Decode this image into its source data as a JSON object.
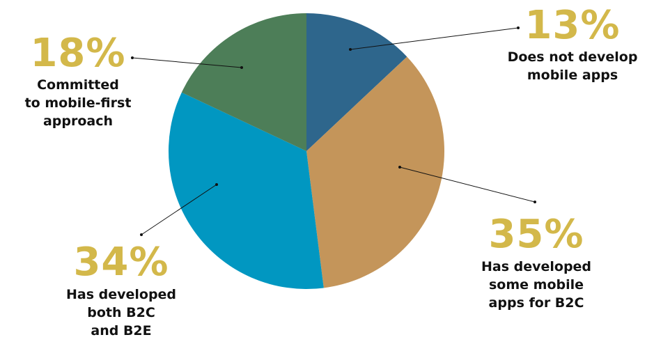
{
  "chart_data": {
    "type": "pie",
    "start_angle_deg": 0,
    "direction": "clockwise",
    "slices": [
      {
        "value": 13,
        "percent_label": "13%",
        "label_lines": [
          "Does not develop",
          "mobile apps"
        ],
        "color": "#2e668c"
      },
      {
        "value": 35,
        "percent_label": "35%",
        "label_lines": [
          "Has developed",
          "some mobile",
          "apps for B2C"
        ],
        "color": "#c4955a"
      },
      {
        "value": 34,
        "percent_label": "34%",
        "label_lines": [
          "Has developed",
          "both B2C",
          "and B2E"
        ],
        "color": "#0197c1"
      },
      {
        "value": 18,
        "percent_label": "18%",
        "label_lines": [
          "Committed",
          "to mobile-first",
          "approach"
        ],
        "color": "#4d7e58"
      }
    ],
    "percent_color": "#d3b84a",
    "label_color": "#111111",
    "leader_color": "#111111"
  }
}
